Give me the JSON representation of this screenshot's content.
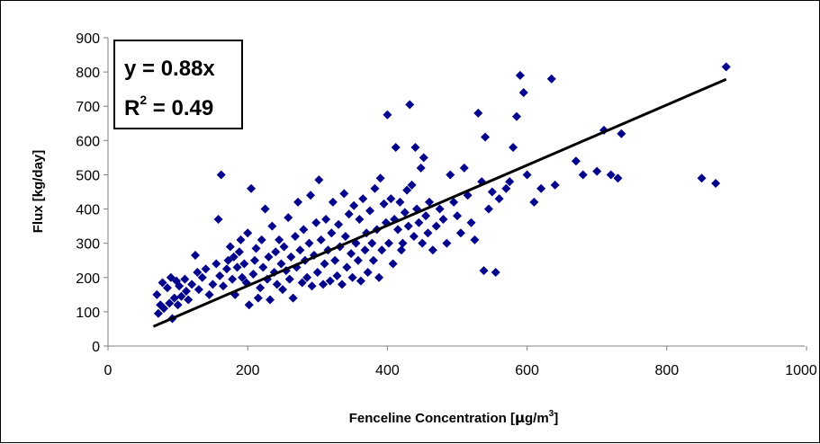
{
  "chart_data": {
    "type": "scatter",
    "xlabel": "Fenceline Concentration [μg/m³]",
    "xlabel_parts": {
      "main": "Fenceline Concentration [",
      "mu": "μ",
      "unit": "g/m",
      "sup": "3",
      "close": "]"
    },
    "ylabel": "Flux [kg/day]",
    "xlim": [
      0,
      1000
    ],
    "ylim": [
      0,
      900
    ],
    "xticks": [
      "0",
      "200",
      "400",
      "600",
      "800",
      "1000"
    ],
    "yticks": [
      "0",
      "100",
      "200",
      "300",
      "400",
      "500",
      "600",
      "700",
      "800",
      "900"
    ],
    "grid": false,
    "marker_color": "#00008B",
    "trendline": {
      "slope": 0.88,
      "x_range": [
        65,
        885
      ],
      "color": "#000000"
    },
    "equation": {
      "line1": "y = 0.88x",
      "r_prefix": "R",
      "r_sup": "2",
      "r_suffix": " = 0.49"
    },
    "series": [
      {
        "points": [
          [
            70,
            150
          ],
          [
            72,
            95
          ],
          [
            75,
            120
          ],
          [
            78,
            185
          ],
          [
            80,
            110
          ],
          [
            85,
            170
          ],
          [
            88,
            125
          ],
          [
            90,
            200
          ],
          [
            92,
            80
          ],
          [
            95,
            140
          ],
          [
            98,
            190
          ],
          [
            100,
            120
          ],
          [
            102,
            175
          ],
          [
            105,
            145
          ],
          [
            110,
            195
          ],
          [
            112,
            160
          ],
          [
            115,
            135
          ],
          [
            120,
            180
          ],
          [
            125,
            265
          ],
          [
            128,
            215
          ],
          [
            130,
            165
          ],
          [
            135,
            200
          ],
          [
            140,
            225
          ],
          [
            145,
            150
          ],
          [
            150,
            180
          ],
          [
            155,
            240
          ],
          [
            158,
            370
          ],
          [
            160,
            205
          ],
          [
            162,
            500
          ],
          [
            165,
            175
          ],
          [
            170,
            225
          ],
          [
            172,
            250
          ],
          [
            175,
            290
          ],
          [
            178,
            195
          ],
          [
            180,
            260
          ],
          [
            182,
            150
          ],
          [
            185,
            230
          ],
          [
            188,
            275
          ],
          [
            190,
            310
          ],
          [
            192,
            200
          ],
          [
            195,
            240
          ],
          [
            198,
            185
          ],
          [
            200,
            330
          ],
          [
            202,
            120
          ],
          [
            205,
            460
          ],
          [
            208,
            210
          ],
          [
            210,
            250
          ],
          [
            212,
            285
          ],
          [
            215,
            140
          ],
          [
            218,
            170
          ],
          [
            220,
            310
          ],
          [
            222,
            230
          ],
          [
            225,
            400
          ],
          [
            228,
            195
          ],
          [
            230,
            260
          ],
          [
            232,
            135
          ],
          [
            235,
            350
          ],
          [
            238,
            215
          ],
          [
            240,
            275
          ],
          [
            242,
            180
          ],
          [
            245,
            310
          ],
          [
            248,
            240
          ],
          [
            250,
            165
          ],
          [
            252,
            290
          ],
          [
            255,
            220
          ],
          [
            258,
            375
          ],
          [
            260,
            195
          ],
          [
            262,
            260
          ],
          [
            265,
            140
          ],
          [
            268,
            320
          ],
          [
            270,
            230
          ],
          [
            272,
            420
          ],
          [
            275,
            280
          ],
          [
            278,
            185
          ],
          [
            280,
            340
          ],
          [
            282,
            250
          ],
          [
            285,
            200
          ],
          [
            288,
            300
          ],
          [
            290,
            440
          ],
          [
            292,
            175
          ],
          [
            295,
            265
          ],
          [
            298,
            360
          ],
          [
            300,
            215
          ],
          [
            302,
            485
          ],
          [
            305,
            310
          ],
          [
            308,
            180
          ],
          [
            310,
            240
          ],
          [
            312,
            370
          ],
          [
            315,
            280
          ],
          [
            318,
            190
          ],
          [
            320,
            330
          ],
          [
            322,
            420
          ],
          [
            325,
            250
          ],
          [
            328,
            205
          ],
          [
            330,
            355
          ],
          [
            332,
            290
          ],
          [
            335,
            180
          ],
          [
            338,
            445
          ],
          [
            340,
            320
          ],
          [
            342,
            230
          ],
          [
            345,
            385
          ],
          [
            348,
            270
          ],
          [
            350,
            200
          ],
          [
            352,
            410
          ],
          [
            355,
            300
          ],
          [
            358,
            250
          ],
          [
            360,
            370
          ],
          [
            362,
            190
          ],
          [
            365,
            430
          ],
          [
            368,
            280
          ],
          [
            370,
            330
          ],
          [
            372,
            215
          ],
          [
            375,
            395
          ],
          [
            378,
            300
          ],
          [
            380,
            250
          ],
          [
            382,
            460
          ],
          [
            385,
            340
          ],
          [
            388,
            200
          ],
          [
            390,
            490
          ],
          [
            392,
            280
          ],
          [
            395,
            415
          ],
          [
            398,
            360
          ],
          [
            400,
            675
          ],
          [
            402,
            300
          ],
          [
            405,
            430
          ],
          [
            408,
            240
          ],
          [
            410,
            370
          ],
          [
            412,
            580
          ],
          [
            415,
            340
          ],
          [
            418,
            420
          ],
          [
            420,
            280
          ],
          [
            422,
            300
          ],
          [
            425,
            390
          ],
          [
            428,
            455
          ],
          [
            430,
            350
          ],
          [
            432,
            705
          ],
          [
            435,
            470
          ],
          [
            438,
            320
          ],
          [
            440,
            580
          ],
          [
            442,
            400
          ],
          [
            445,
            360
          ],
          [
            448,
            520
          ],
          [
            450,
            300
          ],
          [
            452,
            550
          ],
          [
            455,
            380
          ],
          [
            458,
            330
          ],
          [
            460,
            420
          ],
          [
            465,
            280
          ],
          [
            470,
            350
          ],
          [
            475,
            400
          ],
          [
            480,
            370
          ],
          [
            485,
            300
          ],
          [
            490,
            500
          ],
          [
            495,
            420
          ],
          [
            500,
            380
          ],
          [
            505,
            330
          ],
          [
            510,
            520
          ],
          [
            515,
            440
          ],
          [
            520,
            360
          ],
          [
            525,
            310
          ],
          [
            530,
            680
          ],
          [
            535,
            480
          ],
          [
            538,
            220
          ],
          [
            540,
            610
          ],
          [
            545,
            400
          ],
          [
            550,
            450
          ],
          [
            555,
            215
          ],
          [
            560,
            430
          ],
          [
            570,
            460
          ],
          [
            575,
            480
          ],
          [
            580,
            580
          ],
          [
            585,
            670
          ],
          [
            590,
            790
          ],
          [
            595,
            740
          ],
          [
            600,
            500
          ],
          [
            610,
            420
          ],
          [
            620,
            460
          ],
          [
            635,
            780
          ],
          [
            640,
            470
          ],
          [
            670,
            540
          ],
          [
            680,
            500
          ],
          [
            700,
            510
          ],
          [
            710,
            630
          ],
          [
            720,
            500
          ],
          [
            730,
            490
          ],
          [
            735,
            620
          ],
          [
            850,
            490
          ],
          [
            870,
            475
          ],
          [
            885,
            815
          ]
        ]
      }
    ]
  }
}
